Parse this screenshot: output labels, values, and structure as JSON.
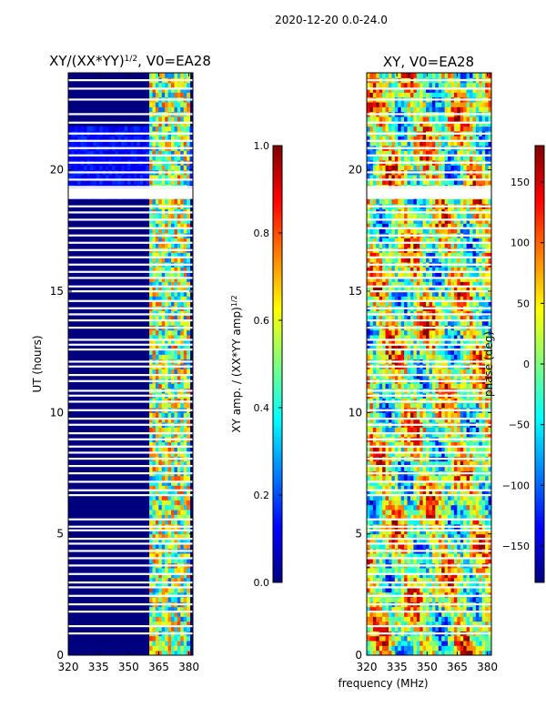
{
  "suptitle": "2020-12-20 0.0-24.0",
  "chart_data": [
    {
      "type": "heatmap",
      "title_main": "XY/(XX*YY)",
      "title_exp": "1/2",
      "title_rest": ", V0=EA28",
      "ylabel": "UT (hours)",
      "xlabel": "",
      "xlim": [
        320,
        382
      ],
      "ylim": [
        0,
        24
      ],
      "xticks": [
        "320",
        "335",
        "350",
        "365",
        "380"
      ],
      "xtick_values": [
        320,
        335,
        350,
        365,
        380
      ],
      "yticks": [
        "0",
        "5",
        "10",
        "15",
        "20"
      ],
      "ytick_values": [
        0,
        5,
        10,
        15,
        20
      ],
      "active_band": [
        360,
        380
      ],
      "colorbar": {
        "label_main": "XY amp. / (XX*YY amp)",
        "label_exp": "1/2",
        "range": [
          0.0,
          1.0
        ],
        "ticks": [
          "0.0",
          "0.2",
          "0.4",
          "0.6",
          "0.8",
          "1.0"
        ],
        "tick_values": [
          0.0,
          0.2,
          0.4,
          0.6,
          0.8,
          1.0
        ],
        "colormap": "jet"
      }
    },
    {
      "type": "heatmap",
      "title": "XY, V0=EA28",
      "ylabel": "",
      "xlabel": "frequency (MHz)",
      "xlim": [
        320,
        382
      ],
      "ylim": [
        0,
        24
      ],
      "xticks": [
        "320",
        "335",
        "350",
        "365",
        "380"
      ],
      "xtick_values": [
        320,
        335,
        350,
        365,
        380
      ],
      "yticks": [
        "0",
        "5",
        "10",
        "15",
        "20"
      ],
      "ytick_values": [
        0,
        5,
        10,
        15,
        20
      ],
      "colorbar": {
        "label": "phase (deg)",
        "range": [
          -180,
          180
        ],
        "ticks": [
          "−150",
          "−100",
          "−50",
          "0",
          "50",
          "100",
          "150"
        ],
        "tick_values": [
          -150,
          -100,
          -50,
          0,
          50,
          100,
          150
        ],
        "colormap": "jet"
      }
    }
  ],
  "flagged_hours": [
    0.9,
    1.2,
    1.8,
    2.1,
    2.45,
    2.8,
    3.0,
    3.35,
    3.7,
    4.0,
    4.3,
    4.6,
    4.8,
    5.15,
    5.3,
    5.6,
    6.6,
    6.8,
    7.15,
    7.5,
    7.8,
    8.1,
    8.35,
    8.6,
    8.9,
    9.15,
    9.5,
    9.75,
    10.1,
    10.45,
    10.7,
    10.9,
    11.3,
    11.55,
    11.9,
    12.1,
    12.6,
    12.8,
    13.0,
    13.5,
    13.8,
    14.05,
    14.3,
    14.6,
    15.0,
    15.2,
    15.55,
    15.8,
    16.1,
    16.4,
    16.7,
    17.0,
    17.3,
    17.6,
    17.95,
    18.25,
    18.5,
    19.3,
    19.6,
    19.9,
    20.3,
    20.6,
    20.9,
    21.2,
    21.5,
    21.95,
    22.3,
    22.9,
    23.35,
    23.7
  ]
}
